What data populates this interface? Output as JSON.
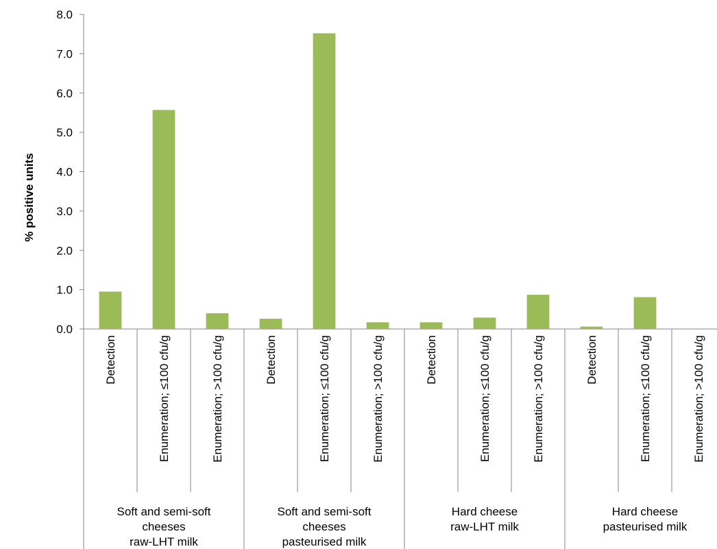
{
  "chart_data": {
    "type": "bar",
    "title": "",
    "xlabel": "",
    "ylabel": "% positive units",
    "ylim": [
      0,
      8
    ],
    "yticks": [
      "0.0",
      "1.0",
      "2.0",
      "3.0",
      "4.0",
      "5.0",
      "6.0",
      "7.0",
      "8.0"
    ],
    "grid": false,
    "legend": "none",
    "bar_color": "#9bbb59",
    "groups": [
      {
        "label_lines": [
          "Soft and semi-soft",
          "cheeses",
          "raw-LHT milk"
        ],
        "categories": [
          "Detection",
          "Enumeration; ≤100 cfu/g",
          "Enumeration; >100 cfu/g"
        ],
        "values": [
          0.95,
          5.57,
          0.4
        ]
      },
      {
        "label_lines": [
          "Soft and semi-soft",
          "cheeses",
          "pasteurised milk"
        ],
        "categories": [
          "Detection",
          "Enumeration; ≤100 cfu/g",
          "Enumeration; >100 cfu/g"
        ],
        "values": [
          0.26,
          7.52,
          0.17
        ]
      },
      {
        "label_lines": [
          "Hard cheese",
          "raw-LHT milk"
        ],
        "categories": [
          "Detection",
          "Enumeration; ≤100 cfu/g",
          "Enumeration; >100 cfu/g"
        ],
        "values": [
          0.17,
          0.29,
          0.87
        ]
      },
      {
        "label_lines": [
          "Hard cheese",
          "pasteurised milk"
        ],
        "categories": [
          "Detection",
          "Enumeration; ≤100 cfu/g",
          "Enumeration; >100 cfu/g"
        ],
        "values": [
          0.06,
          0.81,
          0.0
        ]
      }
    ]
  }
}
